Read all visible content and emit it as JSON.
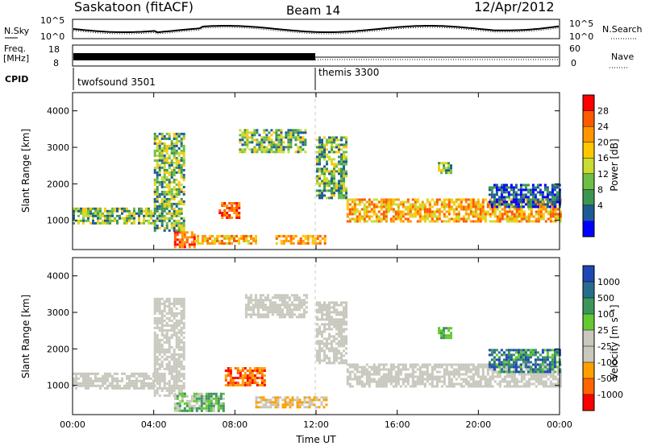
{
  "header": {
    "title": "Saskatoon (fitACF)",
    "beam": "Beam 14",
    "date": "12/Apr/2012"
  },
  "summary": {
    "nsky_label": "N.Sky",
    "nsearch_label": "N.Search",
    "freq_label": "Freq.",
    "freq_unit": "[MHz]",
    "nave_label": "Nave",
    "cpid_label": "CPID",
    "nsky_ticks": [
      "10^5",
      "10^0"
    ],
    "freq_ticks": [
      "18",
      "8"
    ],
    "nave_ticks": [
      "60",
      "0"
    ],
    "cpid_segments": [
      {
        "name": "twofsound 3501",
        "start_hour": 0
      },
      {
        "name": "themis 3300",
        "start_hour": 12
      }
    ]
  },
  "colorbars": {
    "power": {
      "label": "Power [dB]",
      "ticks": [
        "28",
        "24",
        "20",
        "16",
        "12",
        "8",
        "4"
      ],
      "colors": [
        "#ff0000",
        "#ff5a00",
        "#ff9600",
        "#ffc800",
        "#c8dc32",
        "#6ebe46",
        "#3c9650",
        "#1e5a96",
        "#0000ff"
      ]
    },
    "velocity": {
      "label": "Velocity [m s⁻¹]",
      "ticks": [
        "1000",
        "500",
        "100",
        "25",
        "-25",
        "-100",
        "-500",
        "-1000"
      ],
      "colors": [
        "#1e46b4",
        "#286e8c",
        "#3c965a",
        "#64c832",
        "#c8c8be",
        "#c8c8be",
        "#ffa000",
        "#ff6400",
        "#ff0000"
      ]
    }
  },
  "chart_data": [
    {
      "type": "heatmap",
      "name": "power",
      "ylabel": "Slant Range [km]",
      "xlabel": "Time UT",
      "x_ticks": [
        "00:00",
        "04:00",
        "08:00",
        "12:00",
        "16:00",
        "20:00",
        "00:00"
      ],
      "y_ticks": [
        1000,
        2000,
        3000,
        4000
      ],
      "xlim_hours": [
        0,
        24
      ],
      "ylim_km": [
        200,
        4500
      ],
      "marker_hour": 12,
      "echo_regions": [
        {
          "t": [
            0.0,
            4.0
          ],
          "r": [
            950,
            1350
          ],
          "level": "12-16 dB"
        },
        {
          "t": [
            4.0,
            5.5
          ],
          "r": [
            700,
            3400
          ],
          "level": "12-20 dB"
        },
        {
          "t": [
            5.0,
            6.0
          ],
          "r": [
            300,
            700
          ],
          "level": "24-28 dB"
        },
        {
          "t": [
            6.0,
            9.0
          ],
          "r": [
            400,
            600
          ],
          "level": "16-20 dB"
        },
        {
          "t": [
            7.2,
            8.2
          ],
          "r": [
            1050,
            1500
          ],
          "level": "24-28 dB"
        },
        {
          "t": [
            8.2,
            11.5
          ],
          "r": [
            2900,
            3500
          ],
          "level": "12-20 dB"
        },
        {
          "t": [
            10.0,
            12.5
          ],
          "r": [
            350,
            600
          ],
          "level": "20-28 dB"
        },
        {
          "t": [
            12.0,
            13.5
          ],
          "r": [
            1600,
            3300
          ],
          "level": "12-24 dB"
        },
        {
          "t": [
            13.5,
            24.0
          ],
          "r": [
            950,
            1600
          ],
          "level": "16-28 dB"
        },
        {
          "t": [
            18.0,
            18.6
          ],
          "r": [
            2300,
            2600
          ],
          "level": "12-20 dB"
        },
        {
          "t": [
            20.5,
            24.0
          ],
          "r": [
            1400,
            2000
          ],
          "level": "4-12 dB"
        }
      ]
    },
    {
      "type": "heatmap",
      "name": "velocity",
      "ylabel": "Slant Range [km]",
      "xlabel": "Time UT",
      "x_ticks": [
        "00:00",
        "04:00",
        "08:00",
        "12:00",
        "16:00",
        "20:00",
        "00:00"
      ],
      "y_ticks": [
        1000,
        2000,
        3000,
        4000
      ],
      "xlim_hours": [
        0,
        24
      ],
      "ylim_km": [
        200,
        4500
      ],
      "marker_hour": 12,
      "echo_regions": [
        {
          "t": [
            0.0,
            4.0
          ],
          "r": [
            950,
            1350
          ],
          "v": "-25 to 25"
        },
        {
          "t": [
            4.0,
            5.5
          ],
          "r": [
            700,
            3400
          ],
          "v": "-25 to 25"
        },
        {
          "t": [
            5.0,
            7.5
          ],
          "r": [
            300,
            800
          ],
          "v": "25 to 100"
        },
        {
          "t": [
            7.5,
            9.5
          ],
          "r": [
            1000,
            1500
          ],
          "v": "-100 to -500"
        },
        {
          "t": [
            8.5,
            11.5
          ],
          "r": [
            2900,
            3500
          ],
          "v": "-25 to 25"
        },
        {
          "t": [
            9.0,
            12.5
          ],
          "r": [
            400,
            700
          ],
          "v": "-25 to -100"
        },
        {
          "t": [
            12.0,
            13.5
          ],
          "r": [
            1600,
            3300
          ],
          "v": "-25 to 25"
        },
        {
          "t": [
            13.5,
            24.0
          ],
          "r": [
            950,
            1600
          ],
          "v": "-25 to 25"
        },
        {
          "t": [
            18.0,
            18.6
          ],
          "r": [
            2300,
            2600
          ],
          "v": "100 to 500"
        },
        {
          "t": [
            20.5,
            24.0
          ],
          "r": [
            1400,
            2000
          ],
          "v": "100 to 1000"
        }
      ]
    }
  ]
}
